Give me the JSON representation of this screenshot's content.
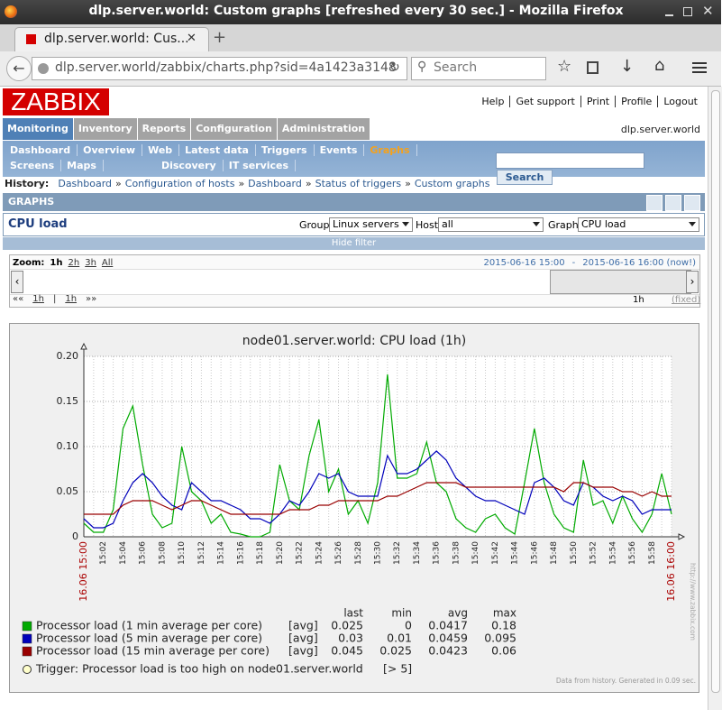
{
  "window": {
    "title": "dlp.server.world: Custom graphs [refreshed every 30 sec.] - Mozilla Firefox",
    "tab": "dlp.server.world: Cus...",
    "url": "dlp.server.world/zabbix/charts.php?sid=4a1423a3148",
    "search_placeholder": "Search"
  },
  "header": {
    "logo": "ZABBIX",
    "links": [
      "Help",
      "Get support",
      "Print",
      "Profile",
      "Logout"
    ],
    "tabs": [
      "Monitoring",
      "Inventory",
      "Reports",
      "Configuration",
      "Administration"
    ],
    "server": "dlp.server.world",
    "subnav": [
      "Dashboard",
      "Overview",
      "Web",
      "Latest data",
      "Triggers",
      "Events",
      "Graphs",
      "Screens",
      "Maps",
      "Discovery",
      "IT services"
    ],
    "search_button": "Search"
  },
  "history": {
    "label": "History:",
    "separator": "»",
    "items": [
      "Dashboard",
      "Configuration of hosts",
      "Dashboard",
      "Status of triggers",
      "Custom graphs"
    ]
  },
  "section": "GRAPHS",
  "filter": {
    "title": "CPU load",
    "group_label": "Group",
    "group": "Linux servers",
    "host_label": "Host",
    "host": "all",
    "graph_label": "Graph",
    "graph": "CPU load",
    "hide": "Hide filter"
  },
  "zoom": {
    "label": "Zoom:",
    "options": [
      "1h",
      "2h",
      "3h",
      "All"
    ],
    "range_start": "2015-06-16 15:00",
    "range_sep": "-",
    "range_end": "2015-06-16 16:00 (now!)",
    "nav": [
      "««",
      "1h",
      "|",
      "1h",
      "»»"
    ],
    "period": "1h",
    "fixed": "(fixed)"
  },
  "chart_data": {
    "type": "line",
    "title": "node01.server.world: CPU load (1h)",
    "categories": [
      "16.06 15:00",
      null,
      "15:02",
      null,
      "15:04",
      null,
      "15:06",
      null,
      "15:08",
      null,
      "15:10",
      null,
      "15:12",
      null,
      "15:14",
      null,
      "15:16",
      null,
      "15:18",
      null,
      "15:20",
      null,
      "15:22",
      null,
      "15:24",
      null,
      "15:26",
      null,
      "15:28",
      null,
      "15:30",
      null,
      "15:32",
      null,
      "15:34",
      null,
      "15:36",
      null,
      "15:38",
      null,
      "15:40",
      null,
      "15:42",
      null,
      "15:44",
      null,
      "15:46",
      null,
      "15:48",
      null,
      "15:50",
      null,
      "15:52",
      null,
      "15:54",
      null,
      "15:56",
      null,
      "15:58",
      null,
      "16.06 16:00"
    ],
    "edge_label_color": "#aa0000",
    "ylim": [
      0,
      0.2
    ],
    "yticks": [
      0,
      0.05,
      {
        "value": 0.1,
        "label": "0.10"
      },
      0.15,
      {
        "value": 0.2,
        "label": "0.20"
      }
    ],
    "grid": true,
    "legend_columns": [
      "last",
      "min",
      "avg",
      "max"
    ],
    "series": [
      {
        "name": "Processor load (1 min average per core)",
        "color": "#00aa00",
        "function": "[avg]",
        "stats": [
          0.025,
          0,
          0.0417,
          0.18
        ],
        "values": [
          0.015,
          0.005,
          0.005,
          0.03,
          0.12,
          0.145,
          0.08,
          0.025,
          0.01,
          0.015,
          0.1,
          0.05,
          0.04,
          0.015,
          0.025,
          0.005,
          0.003,
          0,
          0,
          0.005,
          0.08,
          0.04,
          0.03,
          0.09,
          0.13,
          0.05,
          0.075,
          0.025,
          0.04,
          0.015,
          0.06,
          0.18,
          0.065,
          0.065,
          0.07,
          0.105,
          0.06,
          0.05,
          0.02,
          0.01,
          0.005,
          0.02,
          0.025,
          0.01,
          0.003,
          0.06,
          0.12,
          0.06,
          0.025,
          0.01,
          0.005,
          0.085,
          0.035,
          0.04,
          0.015,
          0.045,
          0.02,
          0.005,
          0.025,
          0.07,
          0.025
        ]
      },
      {
        "name": "Processor load (5 min average per core)",
        "color": "#0000bb",
        "function": "[avg]",
        "stats": [
          0.03,
          0.01,
          0.0459,
          0.095
        ],
        "values": [
          0.02,
          0.01,
          0.01,
          0.015,
          0.04,
          0.06,
          0.07,
          0.06,
          0.045,
          0.035,
          0.03,
          0.06,
          0.05,
          0.04,
          0.04,
          0.035,
          0.03,
          0.02,
          0.02,
          0.015,
          0.025,
          0.04,
          0.035,
          0.05,
          0.07,
          0.065,
          0.07,
          0.05,
          0.045,
          0.045,
          0.045,
          0.09,
          0.07,
          0.07,
          0.075,
          0.085,
          0.095,
          0.085,
          0.065,
          0.055,
          0.045,
          0.04,
          0.04,
          0.035,
          0.03,
          0.025,
          0.06,
          0.065,
          0.055,
          0.04,
          0.035,
          0.06,
          0.055,
          0.045,
          0.04,
          0.045,
          0.04,
          0.025,
          0.03,
          0.03,
          0.03
        ]
      },
      {
        "name": "Processor load (15 min average per core)",
        "color": "#990000",
        "function": "[avg]",
        "stats": [
          0.045,
          0.025,
          0.0423,
          0.06
        ],
        "values": [
          0.025,
          0.025,
          0.025,
          0.025,
          0.035,
          0.04,
          0.04,
          0.04,
          0.035,
          0.03,
          0.035,
          0.04,
          0.04,
          0.035,
          0.03,
          0.025,
          0.025,
          0.025,
          0.025,
          0.025,
          0.025,
          0.03,
          0.03,
          0.03,
          0.035,
          0.035,
          0.04,
          0.04,
          0.04,
          0.04,
          0.04,
          0.045,
          0.045,
          0.05,
          0.055,
          0.06,
          0.06,
          0.06,
          0.06,
          0.055,
          0.055,
          0.055,
          0.055,
          0.055,
          0.055,
          0.055,
          0.055,
          0.055,
          0.055,
          0.05,
          0.06,
          0.06,
          0.055,
          0.055,
          0.055,
          0.05,
          0.05,
          0.045,
          0.05,
          0.045,
          0.045
        ]
      }
    ],
    "trigger": "Trigger: Processor load is too high on node01.server.world",
    "trigger_threshold": "[> 5]",
    "footer": "Data from history. Generated in 0.09 sec.",
    "watermark": "http://www.zabbix.com"
  }
}
